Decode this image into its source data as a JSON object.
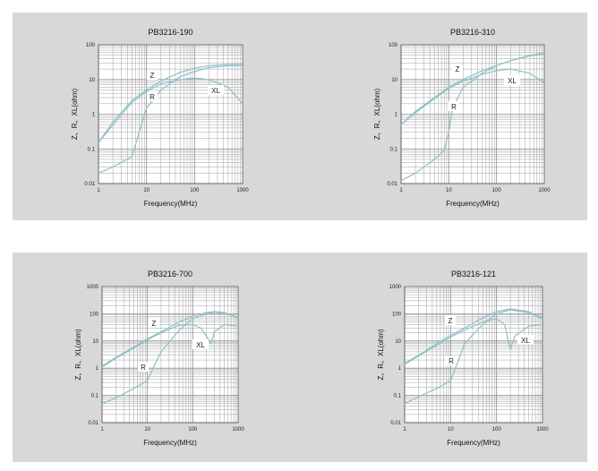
{
  "chart_data": [
    {
      "type": "line",
      "title": "PB3216-190",
      "xlabel": "Frequency(MHz)",
      "ylabel": "Z、R、XL(ohm)",
      "xscale": "log",
      "yscale": "log",
      "xlim": [
        1,
        1000
      ],
      "ylim": [
        0.01,
        100
      ],
      "x_ticks": [
        "1",
        "10",
        "100",
        "1000"
      ],
      "y_ticks": [
        "0.01",
        "0.1",
        "1",
        "10",
        "100"
      ],
      "grid": true,
      "series": [
        {
          "name": "Z",
          "x": [
            1,
            2,
            5,
            10,
            20,
            50,
            100,
            200,
            500,
            1000
          ],
          "values": [
            0.15,
            0.6,
            2.5,
            5,
            9,
            16,
            21,
            25,
            27,
            27
          ]
        },
        {
          "name": "R",
          "x": [
            1,
            2,
            5,
            7,
            10,
            20,
            50,
            100,
            200,
            500,
            1000
          ],
          "values": [
            0.02,
            0.03,
            0.06,
            0.3,
            1.5,
            5,
            12,
            17,
            22,
            25,
            25
          ]
        },
        {
          "name": "XL",
          "x": [
            1,
            2,
            5,
            10,
            20,
            50,
            100,
            200,
            500,
            1000
          ],
          "values": [
            0.15,
            0.5,
            2.2,
            4.5,
            7.5,
            10,
            11,
            10,
            6,
            2
          ]
        }
      ]
    },
    {
      "type": "line",
      "title": "PB3216-310",
      "xlabel": "Frequency(MHz)",
      "ylabel": "Z、R、XL(ohm)",
      "xscale": "log",
      "yscale": "log",
      "xlim": [
        1,
        1000
      ],
      "ylim": [
        0.01,
        100
      ],
      "x_ticks": [
        "1",
        "10",
        "100",
        "1000"
      ],
      "y_ticks": [
        "0.01",
        "0.1",
        "1",
        "10",
        "100"
      ],
      "grid": true,
      "series": [
        {
          "name": "Z",
          "x": [
            1,
            2,
            5,
            10,
            20,
            50,
            100,
            200,
            500,
            1000
          ],
          "values": [
            0.5,
            1.2,
            3,
            6,
            10,
            18,
            25,
            35,
            50,
            58
          ]
        },
        {
          "name": "R",
          "x": [
            1,
            2,
            5,
            8,
            10,
            12,
            20,
            50,
            100,
            200,
            500,
            1000
          ],
          "values": [
            0.012,
            0.02,
            0.05,
            0.09,
            0.3,
            1.5,
            6,
            15,
            25,
            35,
            48,
            56
          ]
        },
        {
          "name": "XL",
          "x": [
            1,
            2,
            5,
            10,
            20,
            50,
            100,
            200,
            500,
            1000
          ],
          "values": [
            0.5,
            1.1,
            2.8,
            5.5,
            9,
            14,
            18,
            20,
            15,
            8
          ]
        }
      ]
    },
    {
      "type": "line",
      "title": "PB3216-700",
      "xlabel": "Frequency(MHz)",
      "ylabel": "Z、R、XL(ohm)",
      "xscale": "log",
      "yscale": "log",
      "xlim": [
        1,
        1000
      ],
      "ylim": [
        0.01,
        1000
      ],
      "x_ticks": [
        "1",
        "10",
        "100",
        "1000"
      ],
      "y_ticks": [
        "0.01",
        "0.1",
        "1",
        "10",
        "100",
        "1000"
      ],
      "grid": true,
      "series": [
        {
          "name": "Z",
          "x": [
            1,
            2,
            5,
            10,
            20,
            50,
            100,
            200,
            300,
            500,
            1000
          ],
          "values": [
            1.2,
            2.5,
            6,
            12,
            22,
            50,
            80,
            110,
            120,
            110,
            70
          ]
        },
        {
          "name": "R",
          "x": [
            1,
            2,
            5,
            10,
            15,
            20,
            50,
            100,
            200,
            300,
            500,
            1000
          ],
          "values": [
            0.05,
            0.08,
            0.18,
            0.35,
            1.5,
            4,
            25,
            65,
            100,
            115,
            105,
            70
          ]
        },
        {
          "name": "XL",
          "x": [
            1,
            2,
            5,
            10,
            20,
            50,
            100,
            150,
            200,
            250,
            300,
            500,
            1000
          ],
          "values": [
            1.1,
            2.3,
            5.5,
            11,
            20,
            38,
            40,
            30,
            15,
            8,
            22,
            40,
            35
          ]
        }
      ]
    },
    {
      "type": "line",
      "title": "PB3216-121",
      "xlabel": "Frequency(MHz)",
      "ylabel": "Z、R、XL(ohm)",
      "xscale": "log",
      "yscale": "log",
      "xlim": [
        1,
        1000
      ],
      "ylim": [
        0.01,
        1000
      ],
      "x_ticks": [
        "1",
        "10",
        "100",
        "1000"
      ],
      "y_ticks": [
        "0.01",
        "0.1",
        "1",
        "10",
        "100",
        "1000"
      ],
      "grid": true,
      "series": [
        {
          "name": "Z",
          "x": [
            1,
            2,
            5,
            10,
            20,
            50,
            100,
            200,
            500,
            1000
          ],
          "values": [
            1.5,
            3,
            8,
            16,
            30,
            70,
            120,
            150,
            120,
            70
          ]
        },
        {
          "name": "R",
          "x": [
            1,
            2,
            5,
            10,
            15,
            20,
            50,
            100,
            200,
            500,
            1000
          ],
          "values": [
            0.05,
            0.09,
            0.18,
            0.35,
            2,
            8,
            40,
            100,
            140,
            110,
            65
          ]
        },
        {
          "name": "XL",
          "x": [
            1,
            2,
            5,
            10,
            20,
            50,
            100,
            150,
            180,
            200,
            250,
            500,
            1000
          ],
          "values": [
            1.4,
            2.8,
            7,
            14,
            25,
            50,
            65,
            40,
            10,
            5,
            15,
            35,
            40
          ]
        }
      ]
    }
  ],
  "colors": {
    "panel": "#d8d8d8",
    "plot_bg": "#ffffff",
    "grid": "#8c8c8c",
    "curve": "#8fc0c6",
    "text": "#111111"
  }
}
